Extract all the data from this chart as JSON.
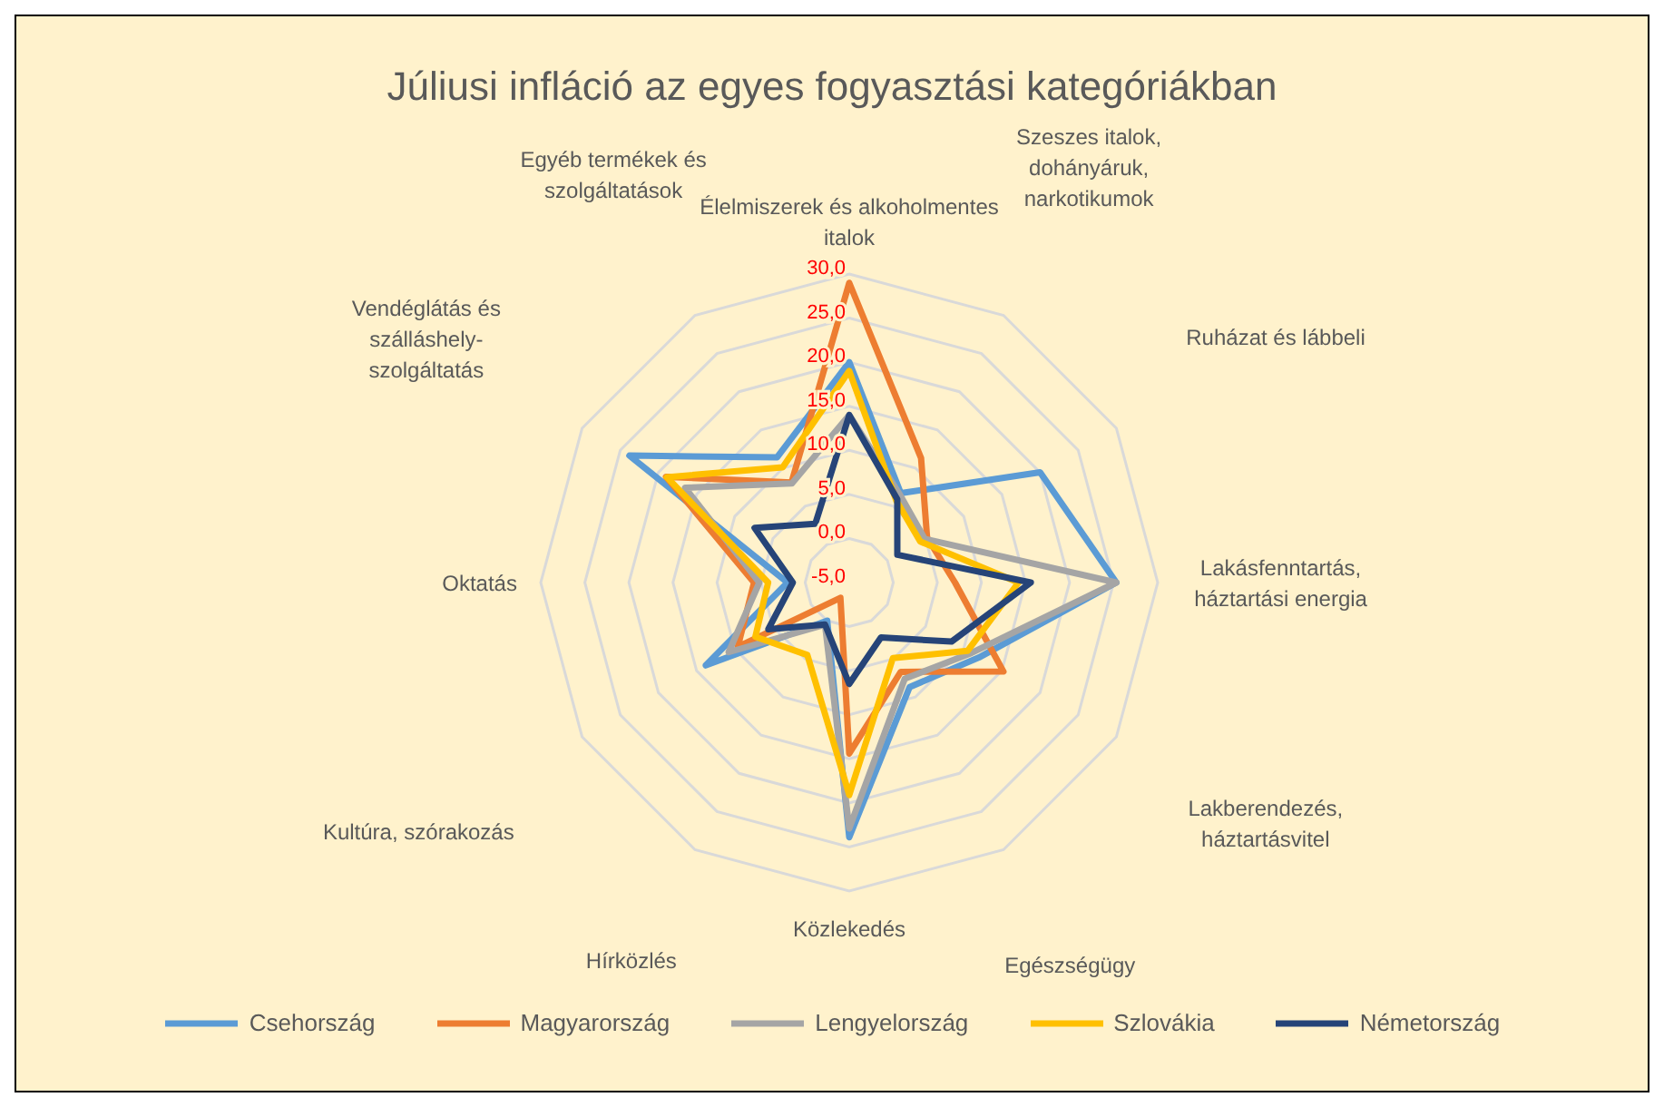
{
  "chart_data": {
    "type": "radar",
    "title": "Júliusi infláció az egyes fogyasztási kategóriákban",
    "categories": [
      "Élelmiszerek és alkoholmentes italok",
      "Szeszes italok, dohányáruk, narkotikumok",
      "Ruházat és lábbeli",
      "Lakásfenntartás, háztartási energia",
      "Lakberendezés, háztartásvitel",
      "Egészségügy",
      "Közlekedés",
      "Hírközlés",
      "Kultúra, szórakozás",
      "Oktatás",
      "Vendéglátás és szálláshely-szolgáltatás",
      "Egyéb termékek és szolgáltatások"
    ],
    "series": [
      {
        "name": "Csehország",
        "color": "#5b9bd5",
        "values": [
          20,
          6.7,
          20,
          25.3,
          12,
          8.7,
          23.9,
          0,
          13.8,
          2,
          23.8,
          11.4
        ]
      },
      {
        "name": "Magyarország",
        "color": "#ed7d31",
        "values": [
          29,
          11.3,
          5.2,
          7,
          15.2,
          6.7,
          14.4,
          -3,
          9.6,
          5.8,
          19,
          8.1
        ]
      },
      {
        "name": "Lengyelország",
        "color": "#a5a5a5",
        "values": [
          14,
          6.5,
          4.9,
          25.3,
          11,
          7.6,
          22.9,
          0.5,
          10.8,
          5.2,
          16.5,
          8
        ]
      },
      {
        "name": "Szlovákia",
        "color": "#ffc000",
        "values": [
          19,
          5.7,
          4.3,
          14.2,
          10.5,
          4.9,
          19.1,
          4.5,
          7.3,
          4.2,
          18.9,
          10.1
        ]
      },
      {
        "name": "Németország",
        "color": "#264478",
        "values": [
          14,
          5.9,
          1.3,
          15.6,
          8.4,
          2.2,
          6.5,
          0.5,
          5.6,
          1.4,
          7.4,
          2.7
        ]
      }
    ],
    "ylim": [
      -5,
      30
    ],
    "yticks": [
      {
        "value": -5,
        "label": "-5,0"
      },
      {
        "value": 0,
        "label": "0,0"
      },
      {
        "value": 5,
        "label": "5,0"
      },
      {
        "value": 10,
        "label": "10,0"
      },
      {
        "value": 15,
        "label": "15,0"
      },
      {
        "value": 20,
        "label": "20,0"
      },
      {
        "value": 25,
        "label": "25,0"
      },
      {
        "value": 30,
        "label": "30,0"
      }
    ],
    "grid": true,
    "legend": "bottom",
    "marker": "none",
    "line_style": "solid"
  }
}
